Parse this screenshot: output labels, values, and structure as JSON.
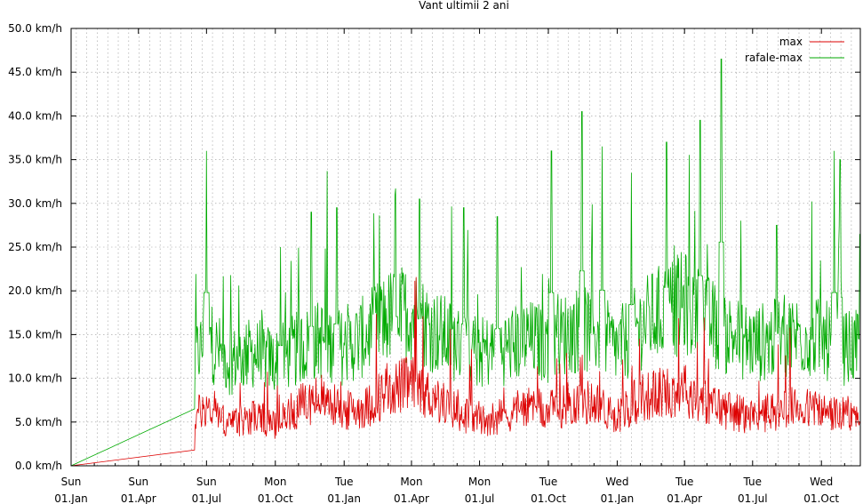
{
  "chart_data": {
    "type": "line",
    "title": "Vant ultimii 2 ani",
    "ylim": [
      0,
      50
    ],
    "y_unit": "km/h",
    "y_ticks": [
      0,
      5,
      10,
      15,
      20,
      25,
      30,
      35,
      40,
      45,
      50
    ],
    "y_tick_labels": [
      "0.0 km/h",
      "5.0 km/h",
      "10.0 km/h",
      "15.0 km/h",
      "20.0 km/h",
      "25.0 km/h",
      "30.0 km/h",
      "35.0 km/h",
      "40.0 km/h",
      "45.0 km/h",
      "50.0 km/h"
    ],
    "grid": true,
    "legend_position": "top-right",
    "x_ticks": [
      {
        "day": "Sun",
        "date": "01.Jan"
      },
      {
        "day": "Sun",
        "date": "01.Apr"
      },
      {
        "day": "Sun",
        "date": "01.Jul"
      },
      {
        "day": "Mon",
        "date": "01.Oct"
      },
      {
        "day": "Tue",
        "date": "01.Jan"
      },
      {
        "day": "Mon",
        "date": "01.Apr"
      },
      {
        "day": "Mon",
        "date": "01.Jul"
      },
      {
        "day": "Tue",
        "date": "01.Oct"
      },
      {
        "day": "Wed",
        "date": "01.Jan"
      },
      {
        "day": "Tue",
        "date": "01.Apr"
      },
      {
        "day": "Tue",
        "date": "01.Jul"
      },
      {
        "day": "Wed",
        "date": "01.Oct"
      }
    ],
    "series": [
      {
        "name": "max",
        "color": "#dd0000",
        "points": [
          [
            "2017-01-01",
            0.0
          ],
          [
            "2017-06-15",
            1.8
          ],
          [
            "2017-06-16",
            5.5
          ],
          [
            "2017-07-01",
            6.5
          ],
          [
            "2017-08-01",
            4.5
          ],
          [
            "2017-09-01",
            5.5
          ],
          [
            "2017-10-01",
            4.5
          ],
          [
            "2017-11-01",
            6.5
          ],
          [
            "2017-12-01",
            7.5
          ],
          [
            "2018-01-01",
            6.0
          ],
          [
            "2018-02-01",
            6.5
          ],
          [
            "2018-03-01",
            8.5
          ],
          [
            "2018-04-01",
            9.0
          ],
          [
            "2018-05-01",
            7.5
          ],
          [
            "2018-06-01",
            6.0
          ],
          [
            "2018-07-01",
            5.0
          ],
          [
            "2018-08-01",
            5.5
          ],
          [
            "2018-09-01",
            6.5
          ],
          [
            "2018-10-01",
            6.0
          ],
          [
            "2018-11-01",
            7.0
          ],
          [
            "2018-12-01",
            7.0
          ],
          [
            "2019-01-01",
            5.5
          ],
          [
            "2019-02-01",
            7.5
          ],
          [
            "2019-03-01",
            8.0
          ],
          [
            "2019-04-01",
            8.5
          ],
          [
            "2019-05-01",
            7.0
          ],
          [
            "2019-06-01",
            6.0
          ],
          [
            "2019-07-01",
            5.5
          ],
          [
            "2019-08-01",
            6.0
          ],
          [
            "2019-09-01",
            6.5
          ],
          [
            "2019-10-01",
            6.0
          ],
          [
            "2019-11-01",
            5.5
          ]
        ]
      },
      {
        "name": "rafale-max",
        "color": "#00aa00",
        "points": [
          [
            "2017-01-01",
            0.0
          ],
          [
            "2017-06-15",
            6.5
          ],
          [
            "2017-06-16",
            12.0
          ],
          [
            "2017-07-01",
            14.0
          ],
          [
            "2017-08-01",
            11.5
          ],
          [
            "2017-09-01",
            12.5
          ],
          [
            "2017-10-01",
            11.5
          ],
          [
            "2017-11-01",
            13.0
          ],
          [
            "2017-12-01",
            14.0
          ],
          [
            "2018-01-01",
            13.0
          ],
          [
            "2018-02-01",
            14.5
          ],
          [
            "2018-03-01",
            16.5
          ],
          [
            "2018-04-01",
            17.0
          ],
          [
            "2018-05-01",
            15.0
          ],
          [
            "2018-06-01",
            13.5
          ],
          [
            "2018-07-01",
            12.5
          ],
          [
            "2018-08-01",
            13.0
          ],
          [
            "2018-09-01",
            14.0
          ],
          [
            "2018-10-01",
            13.5
          ],
          [
            "2018-11-01",
            15.0
          ],
          [
            "2018-12-01",
            15.0
          ],
          [
            "2019-01-01",
            13.0
          ],
          [
            "2019-02-01",
            15.5
          ],
          [
            "2019-03-01",
            17.0
          ],
          [
            "2019-04-01",
            18.0
          ],
          [
            "2019-05-01",
            16.0
          ],
          [
            "2019-06-01",
            14.5
          ],
          [
            "2019-07-01",
            13.5
          ],
          [
            "2019-08-01",
            14.0
          ],
          [
            "2019-09-01",
            14.5
          ],
          [
            "2019-10-01",
            14.0
          ],
          [
            "2019-11-01",
            13.0
          ]
        ],
        "peaks": [
          [
            "2017-07-01",
            36.0
          ],
          [
            "2017-10-08",
            25.0
          ],
          [
            "2017-11-18",
            29.0
          ],
          [
            "2017-12-22",
            29.5
          ],
          [
            "2018-03-10",
            31.0
          ],
          [
            "2018-04-12",
            30.5
          ],
          [
            "2018-06-10",
            29.5
          ],
          [
            "2018-07-25",
            28.5
          ],
          [
            "2018-10-05",
            36.0
          ],
          [
            "2018-11-15",
            40.5
          ],
          [
            "2018-12-12",
            36.5
          ],
          [
            "2019-01-20",
            33.5
          ],
          [
            "2019-03-08",
            37.0
          ],
          [
            "2019-04-22",
            39.5
          ],
          [
            "2019-05-20",
            46.5
          ],
          [
            "2019-08-02",
            27.5
          ],
          [
            "2019-10-18",
            36.0
          ],
          [
            "2019-10-26",
            35.0
          ]
        ]
      }
    ]
  }
}
